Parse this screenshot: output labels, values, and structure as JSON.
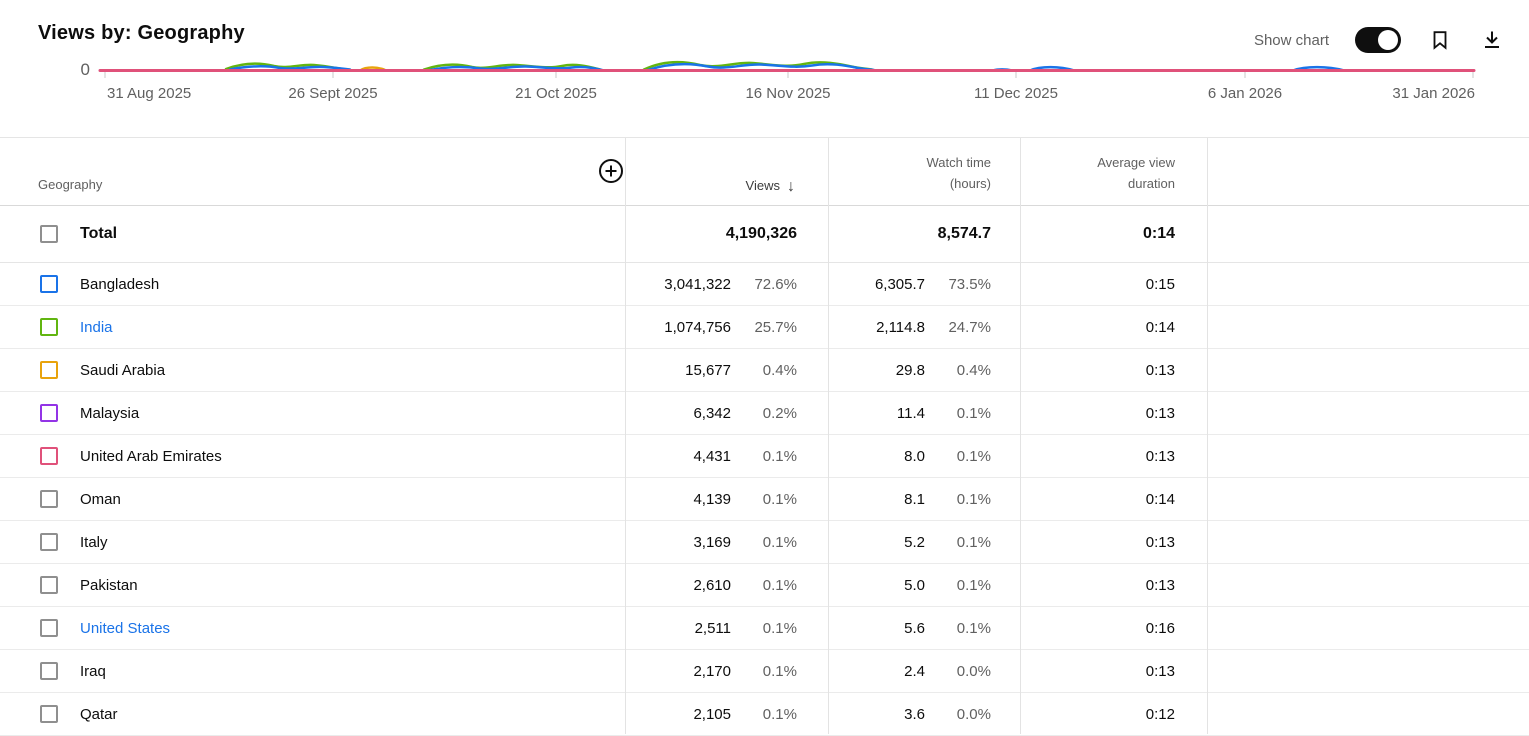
{
  "header": {
    "title": "Views by: Geography",
    "show_chart_label": "Show chart",
    "chart_visible": true
  },
  "chart": {
    "y_axis_zero": "0",
    "x_ticks": [
      "31 Aug 2025",
      "26 Sept 2025",
      "21 Oct 2025",
      "16 Nov 2025",
      "11 Dec 2025",
      "6 Jan 2026",
      "31 Jan 2026"
    ],
    "series_colors": {
      "pink": "#e0517a",
      "blue": "#1a73e8",
      "green": "#61b510",
      "orange": "#e8a30c",
      "purple": "#9334e6",
      "gray": "#8f8f8f"
    }
  },
  "table": {
    "columns": {
      "geography": "Geography",
      "views": "Views",
      "sort_arrow": "↓",
      "watch_time_line1": "Watch time",
      "watch_time_line2": "(hours)",
      "avg_view_duration_line1": "Average view",
      "avg_view_duration_line2": "duration"
    },
    "total": {
      "label": "Total",
      "views": "4,190,326",
      "watch_time": "8,574.7",
      "avg_view_duration": "0:14",
      "checkbox_color": "#8f8f8f"
    },
    "rows": [
      {
        "name": "Bangladesh",
        "checkbox_color": "#1a73e8",
        "link": false,
        "views": "3,041,322",
        "views_pct": "72.6%",
        "watch_time": "6,305.7",
        "watch_time_pct": "73.5%",
        "avg_view_duration": "0:15"
      },
      {
        "name": "India",
        "checkbox_color": "#61b510",
        "link": true,
        "views": "1,074,756",
        "views_pct": "25.7%",
        "watch_time": "2,114.8",
        "watch_time_pct": "24.7%",
        "avg_view_duration": "0:14"
      },
      {
        "name": "Saudi Arabia",
        "checkbox_color": "#e8a30c",
        "link": false,
        "views": "15,677",
        "views_pct": "0.4%",
        "watch_time": "29.8",
        "watch_time_pct": "0.4%",
        "avg_view_duration": "0:13"
      },
      {
        "name": "Malaysia",
        "checkbox_color": "#9334e6",
        "link": false,
        "views": "6,342",
        "views_pct": "0.2%",
        "watch_time": "11.4",
        "watch_time_pct": "0.1%",
        "avg_view_duration": "0:13"
      },
      {
        "name": "United Arab Emirates",
        "checkbox_color": "#e0517a",
        "link": false,
        "views": "4,431",
        "views_pct": "0.1%",
        "watch_time": "8.0",
        "watch_time_pct": "0.1%",
        "avg_view_duration": "0:13"
      },
      {
        "name": "Oman",
        "checkbox_color": "#8f8f8f",
        "link": false,
        "views": "4,139",
        "views_pct": "0.1%",
        "watch_time": "8.1",
        "watch_time_pct": "0.1%",
        "avg_view_duration": "0:14"
      },
      {
        "name": "Italy",
        "checkbox_color": "#8f8f8f",
        "link": false,
        "views": "3,169",
        "views_pct": "0.1%",
        "watch_time": "5.2",
        "watch_time_pct": "0.1%",
        "avg_view_duration": "0:13"
      },
      {
        "name": "Pakistan",
        "checkbox_color": "#8f8f8f",
        "link": false,
        "views": "2,610",
        "views_pct": "0.1%",
        "watch_time": "5.0",
        "watch_time_pct": "0.1%",
        "avg_view_duration": "0:13"
      },
      {
        "name": "United States",
        "checkbox_color": "#8f8f8f",
        "link": true,
        "views": "2,511",
        "views_pct": "0.1%",
        "watch_time": "5.6",
        "watch_time_pct": "0.1%",
        "avg_view_duration": "0:16"
      },
      {
        "name": "Iraq",
        "checkbox_color": "#8f8f8f",
        "link": false,
        "views": "2,170",
        "views_pct": "0.1%",
        "watch_time": "2.4",
        "watch_time_pct": "0.0%",
        "avg_view_duration": "0:13"
      },
      {
        "name": "Qatar",
        "checkbox_color": "#8f8f8f",
        "link": false,
        "views": "2,105",
        "views_pct": "0.1%",
        "watch_time": "3.6",
        "watch_time_pct": "0.0%",
        "avg_view_duration": "0:12"
      }
    ]
  }
}
